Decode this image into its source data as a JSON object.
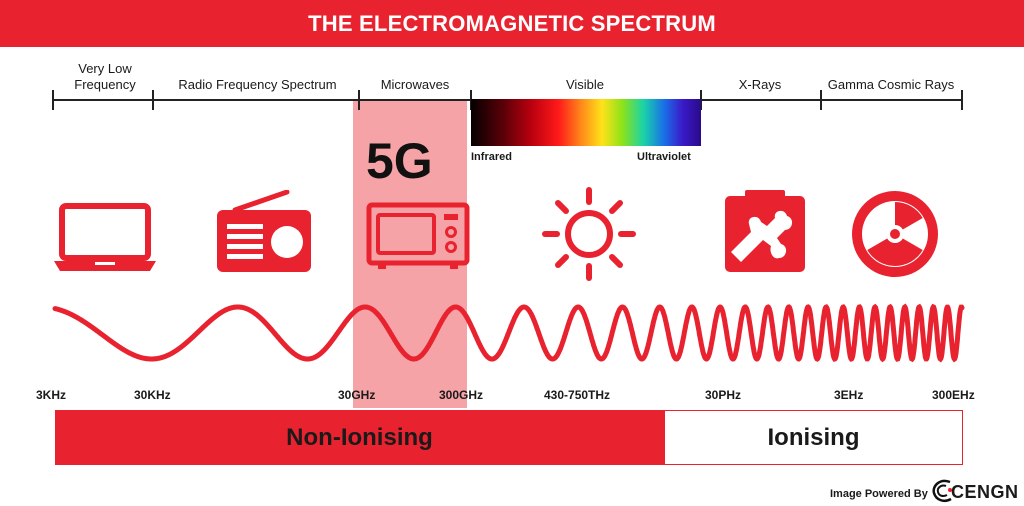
{
  "title": "THE ELECTROMAGNETIC SPECTRUM",
  "bands": [
    {
      "label": "Very Low\nFrequency"
    },
    {
      "label": "Radio Frequency Spectrum"
    },
    {
      "label": "Microwaves"
    },
    {
      "label": "Visible"
    },
    {
      "label": "X-Rays"
    },
    {
      "label": "Gamma Cosmic Rays"
    }
  ],
  "visible_range": {
    "left_label": "Infrared",
    "right_label": "Ultraviolet"
  },
  "highlight_label": "5G",
  "icons": [
    "laptop-icon",
    "radio-icon",
    "microwave-icon",
    "sun-icon",
    "xray-icon",
    "radiation-icon"
  ],
  "frequencies": [
    "3KHz",
    "30KHz",
    "30GHz",
    "300GHz",
    "430-750THz",
    "30PHz",
    "3EHz",
    "300EHz"
  ],
  "categories": {
    "non_ionising": "Non-Ionising",
    "ionising": "Ionising"
  },
  "credit": {
    "text": "Image Powered By",
    "logo": "CENGN"
  },
  "colors": {
    "accent": "#e8232f",
    "highlight": "#f0a0a4"
  }
}
